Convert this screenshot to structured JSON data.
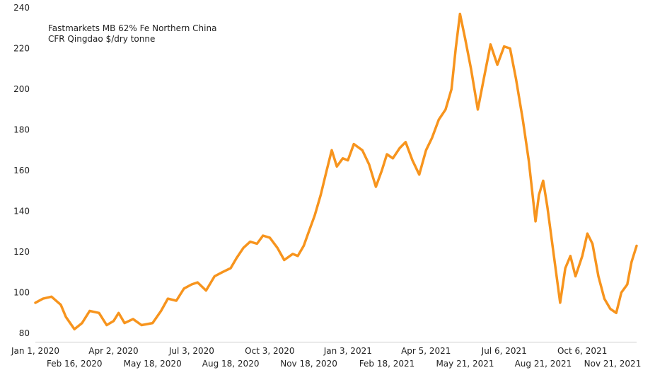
{
  "chart_data": {
    "type": "line",
    "title": "",
    "annotation": [
      "Fastmarkets MB 62% Fe Northern China",
      "CFR Qingdao $/dry tonne"
    ],
    "xlabel": "",
    "ylabel": "",
    "ylim": [
      80,
      240
    ],
    "yticks": [
      80,
      100,
      120,
      140,
      160,
      180,
      200,
      220,
      240
    ],
    "xlim": [
      "2020-01-01",
      "2021-12-09"
    ],
    "xticks_row1": [
      "Jan 1, 2020",
      "Apr 2, 2020",
      "Jul 3, 2020",
      "Oct 3, 2020",
      "Jan 3, 2021",
      "Apr 5, 2021",
      "Jul 6, 2021",
      "Oct 6, 2021"
    ],
    "xticks_row2": [
      "Feb 16, 2020",
      "May 18, 2020",
      "Aug 18, 2020",
      "Nov 18, 2020",
      "Feb 18, 2021",
      "May 21, 2021",
      "Aug 21, 2021",
      "Nov 21, 2021"
    ],
    "grid": false,
    "line_color": "#F7941D",
    "series": [
      {
        "name": "",
        "x": [
          "2020-01-01",
          "2020-01-10",
          "2020-01-20",
          "2020-01-31",
          "2020-02-06",
          "2020-02-16",
          "2020-02-25",
          "2020-03-05",
          "2020-03-16",
          "2020-03-25",
          "2020-04-02",
          "2020-04-08",
          "2020-04-15",
          "2020-04-25",
          "2020-05-05",
          "2020-05-18",
          "2020-05-28",
          "2020-06-05",
          "2020-06-15",
          "2020-06-24",
          "2020-07-03",
          "2020-07-10",
          "2020-07-20",
          "2020-07-30",
          "2020-08-08",
          "2020-08-18",
          "2020-08-25",
          "2020-09-02",
          "2020-09-10",
          "2020-09-18",
          "2020-09-25",
          "2020-10-03",
          "2020-10-12",
          "2020-10-20",
          "2020-10-30",
          "2020-11-05",
          "2020-11-12",
          "2020-11-18",
          "2020-11-25",
          "2020-12-02",
          "2020-12-09",
          "2020-12-15",
          "2020-12-21",
          "2020-12-28",
          "2021-01-03",
          "2021-01-10",
          "2021-01-20",
          "2021-01-28",
          "2021-02-05",
          "2021-02-12",
          "2021-02-18",
          "2021-02-25",
          "2021-03-05",
          "2021-03-12",
          "2021-03-20",
          "2021-03-28",
          "2021-04-05",
          "2021-04-12",
          "2021-04-20",
          "2021-04-28",
          "2021-05-05",
          "2021-05-10",
          "2021-05-15",
          "2021-05-21",
          "2021-05-28",
          "2021-06-05",
          "2021-06-12",
          "2021-06-20",
          "2021-06-28",
          "2021-07-06",
          "2021-07-13",
          "2021-07-20",
          "2021-07-28",
          "2021-08-04",
          "2021-08-12",
          "2021-08-16",
          "2021-08-21",
          "2021-08-26",
          "2021-09-02",
          "2021-09-10",
          "2021-09-16",
          "2021-09-22",
          "2021-09-28",
          "2021-10-06",
          "2021-10-12",
          "2021-10-18",
          "2021-10-25",
          "2021-11-01",
          "2021-11-08",
          "2021-11-15",
          "2021-11-21",
          "2021-11-28",
          "2021-12-03",
          "2021-12-09"
        ],
        "values": [
          95,
          97,
          98,
          94,
          88,
          82,
          85,
          91,
          90,
          84,
          86,
          90,
          85,
          87,
          84,
          85,
          91,
          97,
          96,
          102,
          104,
          105,
          101,
          108,
          110,
          112,
          117,
          122,
          125,
          124,
          128,
          127,
          122,
          116,
          119,
          118,
          123,
          130,
          138,
          148,
          160,
          170,
          162,
          166,
          165,
          173,
          170,
          163,
          152,
          160,
          168,
          166,
          171,
          174,
          165,
          158,
          170,
          176,
          185,
          190,
          200,
          220,
          237,
          225,
          210,
          190,
          205,
          222,
          212,
          221,
          220,
          205,
          185,
          165,
          135,
          148,
          155,
          142,
          120,
          95,
          112,
          118,
          108,
          118,
          129,
          124,
          108,
          97,
          92,
          90,
          100,
          104,
          115,
          123
        ]
      }
    ]
  }
}
